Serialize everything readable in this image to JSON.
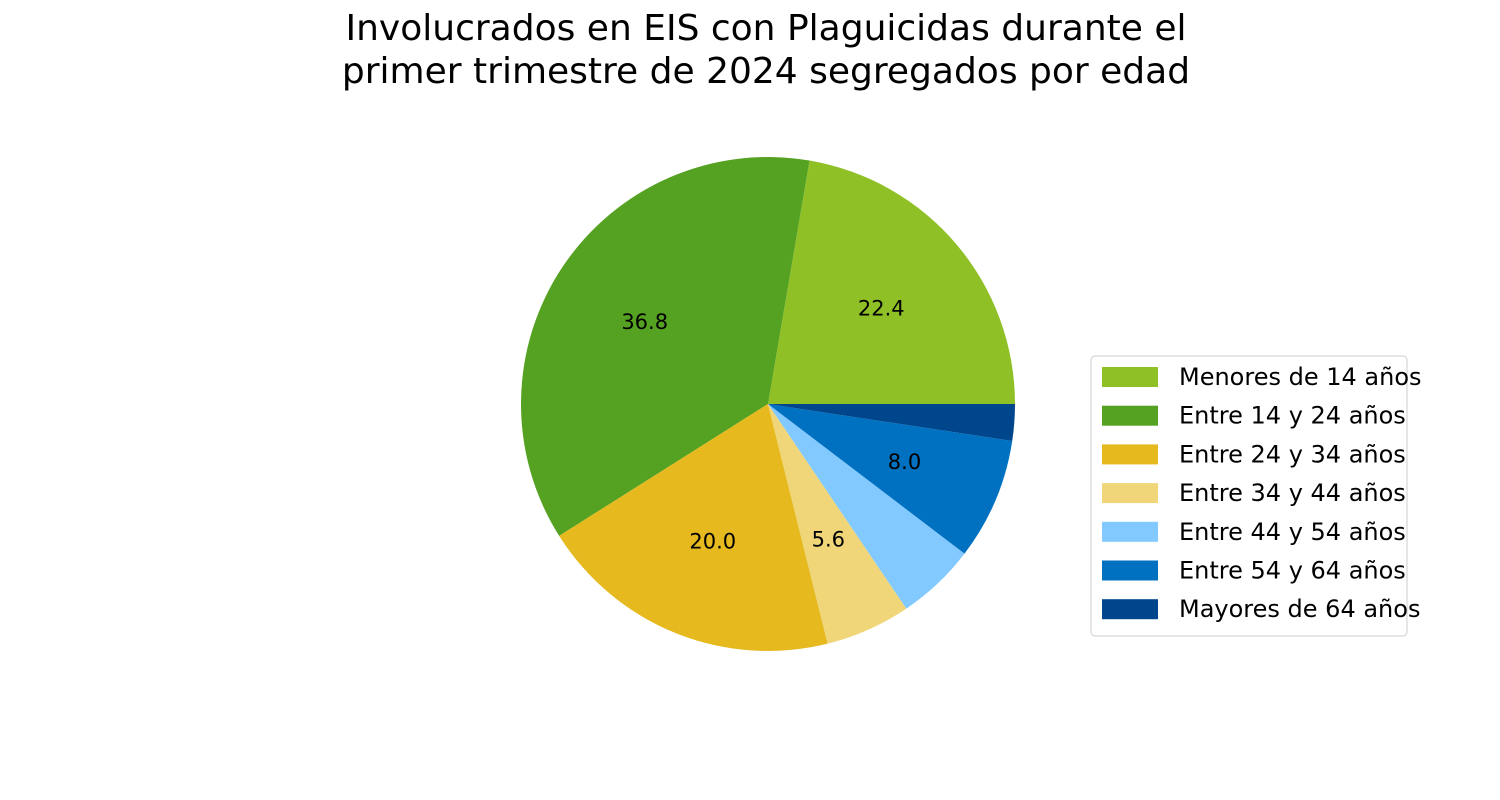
{
  "chart_data": {
    "type": "pie",
    "title_lines": [
      "Involucrados en EIS con Plaguicidas durante el",
      "primer trimestre de 2024 segregados por edad"
    ],
    "legend_placement": "center-right",
    "slices": [
      {
        "label": "Menores de 14 años",
        "value": 22.4,
        "display": "22.4",
        "color": "#8FC127"
      },
      {
        "label": "Entre 14 y 24 años",
        "value": 36.8,
        "display": "36.8",
        "color": "#55A222"
      },
      {
        "label": "Entre 24 y 34 años",
        "value": 20.0,
        "display": "20.0",
        "color": "#E6B91F"
      },
      {
        "label": "Entre 34 y 44 años",
        "value": 5.6,
        "display": "5.6",
        "color": "#F0D679"
      },
      {
        "label": "Entre 44 y 54 años",
        "value": 5.2,
        "display": "",
        "color": "#82C9FF"
      },
      {
        "label": "Entre 54 y 64 años",
        "value": 8.0,
        "display": "8.0",
        "color": "#0071C1"
      },
      {
        "label": "Mayores de 64 años",
        "value": 2.4,
        "display": "",
        "color": "#00468C"
      }
    ]
  }
}
